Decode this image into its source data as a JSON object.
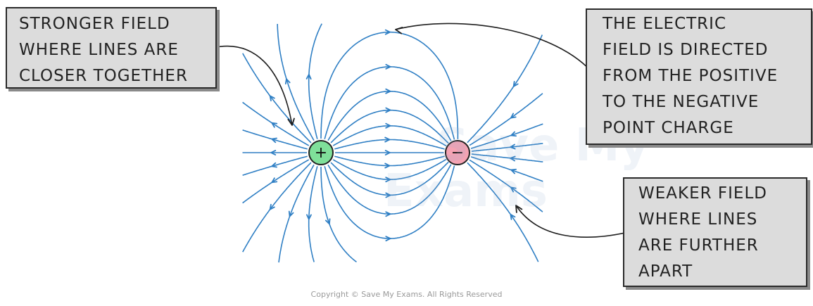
{
  "labels": {
    "stronger_field": "STRONGER FIELD\nWHERE LINES ARE\nCLOSER TOGETHER",
    "field_direction": "THE ELECTRIC\nFIELD IS DIRECTED\nFROM THE POSITIVE\nTO THE NEGATIVE\nPOINT CHARGE",
    "weaker_field": "WEAKER FIELD\nWHERE LINES\nARE FURTHER\nAPART"
  },
  "charges": {
    "positive_symbol": "+",
    "negative_symbol": "−"
  },
  "watermark": {
    "line1": "Save My",
    "line2": "Exams"
  },
  "copyright": "Copyright © Save My Exams. All Rights Reserved",
  "colors": {
    "field_line": "#2f7fc4",
    "positive_fill": "#7fe09a",
    "negative_fill": "#f5a3b3",
    "box_fill": "#dcdcdc",
    "box_border": "#2a2a2a"
  }
}
